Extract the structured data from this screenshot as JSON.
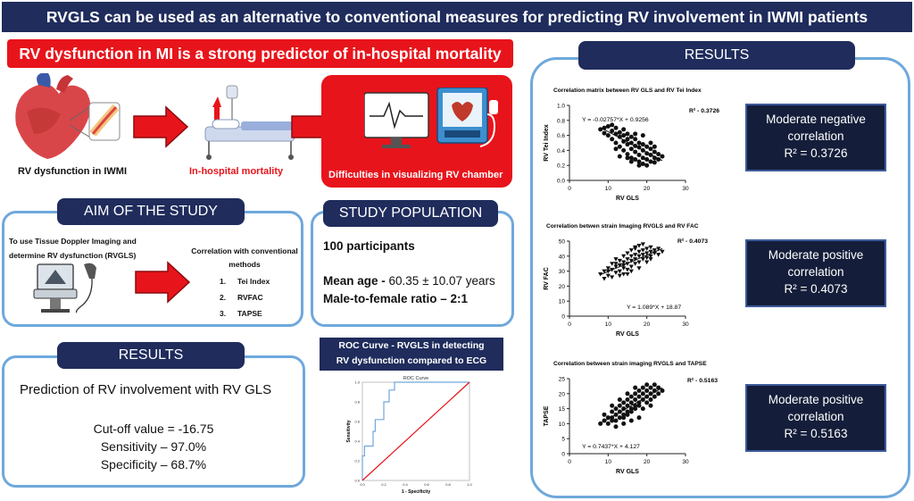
{
  "banner": {
    "title": "RVGLS can be used as an alternative to conventional measures for predicting RV involvement in IWMI patients"
  },
  "mortality": {
    "header": "RV dysfunction in MI is a strong predictor of in-hospital mortality",
    "step1_label": "RV dysfunction in IWMI",
    "step2_label": "In-hospital mortality",
    "step3_label": "Difficulties in visualizing RV chamber"
  },
  "aim": {
    "title": "AIM OF THE STUDY",
    "text_line1": "To use Tissue Doppler Imaging and",
    "text_line2": "determine RV dysfunction (RVGLS)",
    "corr_line1": "Correlation with conventional",
    "corr_line2": "methods",
    "methods": [
      {
        "num": "1.",
        "name": "Tei Index"
      },
      {
        "num": "2.",
        "name": "RVFAC"
      },
      {
        "num": "3.",
        "name": "TAPSE"
      }
    ]
  },
  "population": {
    "title": "STUDY POPULATION",
    "participants": "100 participants",
    "mean_age_label": "Mean age -",
    "mean_age_value": " 60.35 ± 10.07 years",
    "ratio_label": "Male-to-female ratio – 2:1"
  },
  "results_left": {
    "title": "RESULTS",
    "heading": "Prediction of RV involvement with RV GLS",
    "cutoff": "Cut-off value = -16.75",
    "sensitivity": "Sensitivity – 97.0%",
    "specificity": "Specificity – 68.7%"
  },
  "roc": {
    "caption_line1": "ROC Curve - RVGLS in detecting",
    "caption_line2": "RV dysfunction compared to ECG"
  },
  "results_right": {
    "title": "RESULTS",
    "boxes": [
      {
        "line1": "Moderate negative",
        "line2": "correlation",
        "r2": "R² = 0.3726"
      },
      {
        "line1": "Moderate positive",
        "line2": "correlation",
        "r2": "R² = 0.4073"
      },
      {
        "line1": "Moderate positive",
        "line2": "correlation",
        "r2": "R² = 0.5163"
      }
    ]
  },
  "chart_data": [
    {
      "type": "scatter",
      "title": "Correlation matrix between RV GLS and RV Tei Index",
      "xlabel": "RV GLS",
      "ylabel": "RV Tei Index",
      "xlim": [
        0,
        30
      ],
      "ylim": [
        0,
        1.0
      ],
      "xticks": [
        "0",
        "10",
        "20",
        "30"
      ],
      "yticks": [
        "0.0",
        "0.2",
        "0.4",
        "0.6",
        "0.8",
        "1.0"
      ],
      "equation": "Y = -0.02757*X + 0.9256",
      "r2_label": "R² - 0.3726",
      "fit": {
        "slope": -0.02757,
        "intercept": 0.9256,
        "x_range": [
          8,
          24
        ]
      },
      "marker": "circle",
      "points": [
        [
          8,
          0.68
        ],
        [
          9,
          0.7
        ],
        [
          9,
          0.63
        ],
        [
          10,
          0.72
        ],
        [
          10,
          0.6
        ],
        [
          11,
          0.66
        ],
        [
          11,
          0.55
        ],
        [
          11,
          0.74
        ],
        [
          12,
          0.62
        ],
        [
          12,
          0.5
        ],
        [
          12,
          0.7
        ],
        [
          13,
          0.58
        ],
        [
          13,
          0.64
        ],
        [
          13,
          0.45
        ],
        [
          14,
          0.6
        ],
        [
          14,
          0.52
        ],
        [
          14,
          0.4
        ],
        [
          14,
          0.68
        ],
        [
          15,
          0.55
        ],
        [
          15,
          0.48
        ],
        [
          15,
          0.62
        ],
        [
          15,
          0.35
        ],
        [
          16,
          0.5
        ],
        [
          16,
          0.42
        ],
        [
          16,
          0.58
        ],
        [
          16,
          0.3
        ],
        [
          17,
          0.46
        ],
        [
          17,
          0.38
        ],
        [
          17,
          0.55
        ],
        [
          17,
          0.28
        ],
        [
          18,
          0.44
        ],
        [
          18,
          0.34
        ],
        [
          18,
          0.5
        ],
        [
          18,
          0.25
        ],
        [
          19,
          0.4
        ],
        [
          19,
          0.3
        ],
        [
          19,
          0.48
        ],
        [
          19,
          0.22
        ],
        [
          20,
          0.36
        ],
        [
          20,
          0.28
        ],
        [
          20,
          0.45
        ],
        [
          20,
          0.2
        ],
        [
          21,
          0.34
        ],
        [
          21,
          0.25
        ],
        [
          21,
          0.42
        ],
        [
          22,
          0.3
        ],
        [
          22,
          0.38
        ],
        [
          22,
          0.24
        ],
        [
          23,
          0.35
        ],
        [
          23,
          0.28
        ],
        [
          24,
          0.32
        ],
        [
          13,
          0.32
        ],
        [
          15,
          0.3
        ],
        [
          17,
          0.62
        ],
        [
          19,
          0.6
        ],
        [
          21,
          0.5
        ],
        [
          22,
          0.45
        ],
        [
          12,
          0.42
        ],
        [
          16,
          0.25
        ],
        [
          18,
          0.2
        ]
      ]
    },
    {
      "type": "scatter",
      "title": "Correlation betwen strain Imaging RVGLS and RV FAC",
      "xlabel": "RV GLS",
      "ylabel": "RV FAC",
      "xlim": [
        0,
        30
      ],
      "ylim": [
        0,
        50
      ],
      "xticks": [
        "0",
        "10",
        "20",
        "30"
      ],
      "yticks": [
        "0",
        "10",
        "20",
        "30",
        "40",
        "50"
      ],
      "equation": "Y = 1.089*X + 18.87",
      "r2_label": "R² - 0.4073",
      "fit": {
        "slope": 1.089,
        "intercept": 18.87,
        "x_range": [
          8,
          24
        ]
      },
      "marker": "triangle",
      "points": [
        [
          8,
          28
        ],
        [
          9,
          30
        ],
        [
          9,
          25
        ],
        [
          10,
          32
        ],
        [
          10,
          27
        ],
        [
          11,
          31
        ],
        [
          11,
          35
        ],
        [
          11,
          26
        ],
        [
          12,
          33
        ],
        [
          12,
          29
        ],
        [
          12,
          38
        ],
        [
          13,
          34
        ],
        [
          13,
          30
        ],
        [
          13,
          37
        ],
        [
          14,
          36
        ],
        [
          14,
          32
        ],
        [
          14,
          40
        ],
        [
          14,
          28
        ],
        [
          15,
          35
        ],
        [
          15,
          38
        ],
        [
          15,
          31
        ],
        [
          15,
          42
        ],
        [
          16,
          37
        ],
        [
          16,
          40
        ],
        [
          16,
          33
        ],
        [
          16,
          44
        ],
        [
          17,
          38
        ],
        [
          17,
          41
        ],
        [
          17,
          35
        ],
        [
          17,
          45
        ],
        [
          18,
          40
        ],
        [
          18,
          43
        ],
        [
          18,
          36
        ],
        [
          18,
          47
        ],
        [
          19,
          41
        ],
        [
          19,
          44
        ],
        [
          19,
          38
        ],
        [
          20,
          42
        ],
        [
          20,
          45
        ],
        [
          20,
          39
        ],
        [
          21,
          43
        ],
        [
          21,
          40
        ],
        [
          21,
          46
        ],
        [
          22,
          42
        ],
        [
          22,
          44
        ],
        [
          23,
          41
        ],
        [
          23,
          45
        ],
        [
          24,
          43
        ],
        [
          12,
          35
        ],
        [
          14,
          34
        ],
        [
          16,
          30
        ],
        [
          18,
          32
        ],
        [
          20,
          36
        ],
        [
          19,
          48
        ],
        [
          17,
          46
        ],
        [
          13,
          27
        ],
        [
          15,
          28
        ],
        [
          21,
          38
        ],
        [
          10,
          30
        ]
      ]
    },
    {
      "type": "scatter",
      "title": "Correlation between strain imaging RVGLS and TAPSE",
      "xlabel": "RV GLS",
      "ylabel": "TAPSE",
      "xlim": [
        0,
        30
      ],
      "ylim": [
        0,
        25
      ],
      "xticks": [
        "0",
        "10",
        "20",
        "30"
      ],
      "yticks": [
        "0",
        "5",
        "10",
        "15",
        "20",
        "25"
      ],
      "equation": "Y = 0.7437*X + 4.127",
      "r2_label": "R² - 0.5163",
      "fit": {
        "slope": 0.7437,
        "intercept": 4.127,
        "x_range": [
          8,
          24
        ]
      },
      "marker": "circle",
      "points": [
        [
          8,
          10
        ],
        [
          9,
          11
        ],
        [
          9,
          13
        ],
        [
          10,
          12
        ],
        [
          10,
          10
        ],
        [
          11,
          12
        ],
        [
          11,
          14
        ],
        [
          11,
          11
        ],
        [
          12,
          13
        ],
        [
          12,
          15
        ],
        [
          12,
          11
        ],
        [
          13,
          14
        ],
        [
          13,
          12
        ],
        [
          13,
          16
        ],
        [
          14,
          15
        ],
        [
          14,
          13
        ],
        [
          14,
          17
        ],
        [
          14,
          12
        ],
        [
          15,
          16
        ],
        [
          15,
          14
        ],
        [
          15,
          18
        ],
        [
          15,
          13
        ],
        [
          16,
          17
        ],
        [
          16,
          15
        ],
        [
          16,
          19
        ],
        [
          16,
          14
        ],
        [
          17,
          18
        ],
        [
          17,
          16
        ],
        [
          17,
          20
        ],
        [
          17,
          15
        ],
        [
          18,
          19
        ],
        [
          18,
          17
        ],
        [
          18,
          21
        ],
        [
          18,
          16
        ],
        [
          19,
          20
        ],
        [
          19,
          18
        ],
        [
          19,
          22
        ],
        [
          20,
          19
        ],
        [
          20,
          21
        ],
        [
          20,
          17
        ],
        [
          20,
          23
        ],
        [
          21,
          20
        ],
        [
          21,
          22
        ],
        [
          21,
          18
        ],
        [
          22,
          21
        ],
        [
          22,
          19
        ],
        [
          22,
          23
        ],
        [
          23,
          20
        ],
        [
          23,
          22
        ],
        [
          24,
          21
        ],
        [
          12,
          9
        ],
        [
          14,
          10
        ],
        [
          16,
          11
        ],
        [
          18,
          12
        ],
        [
          19,
          15
        ],
        [
          21,
          16
        ],
        [
          13,
          18
        ],
        [
          15,
          20
        ],
        [
          17,
          22
        ],
        [
          11,
          16
        ]
      ]
    },
    {
      "type": "line",
      "title": "ROC Curve",
      "xlabel": "1 - Specificity",
      "ylabel": "Sensitivity",
      "xlim": [
        0,
        1
      ],
      "ylim": [
        0,
        1
      ],
      "xticks": [
        "0.0",
        "0.2",
        "0.4",
        "0.6",
        "0.8",
        "1.0"
      ],
      "yticks": [
        "0.0",
        "0.2",
        "0.4",
        "0.6",
        "0.8",
        "1.0"
      ],
      "series": [
        {
          "x": [
            0,
            0,
            0.02,
            0.02,
            0.1,
            0.1,
            0.12,
            0.12,
            0.2,
            0.2,
            0.25,
            0.25,
            0.3,
            0.3,
            1.0
          ],
          "y": [
            0,
            0.25,
            0.25,
            0.35,
            0.35,
            0.5,
            0.5,
            0.62,
            0.62,
            0.8,
            0.8,
            0.92,
            0.92,
            1.0,
            1.0
          ],
          "color": "#6fa8dc"
        },
        {
          "x": [
            0,
            1
          ],
          "y": [
            0,
            1
          ],
          "color": "#e8141b"
        }
      ]
    }
  ]
}
